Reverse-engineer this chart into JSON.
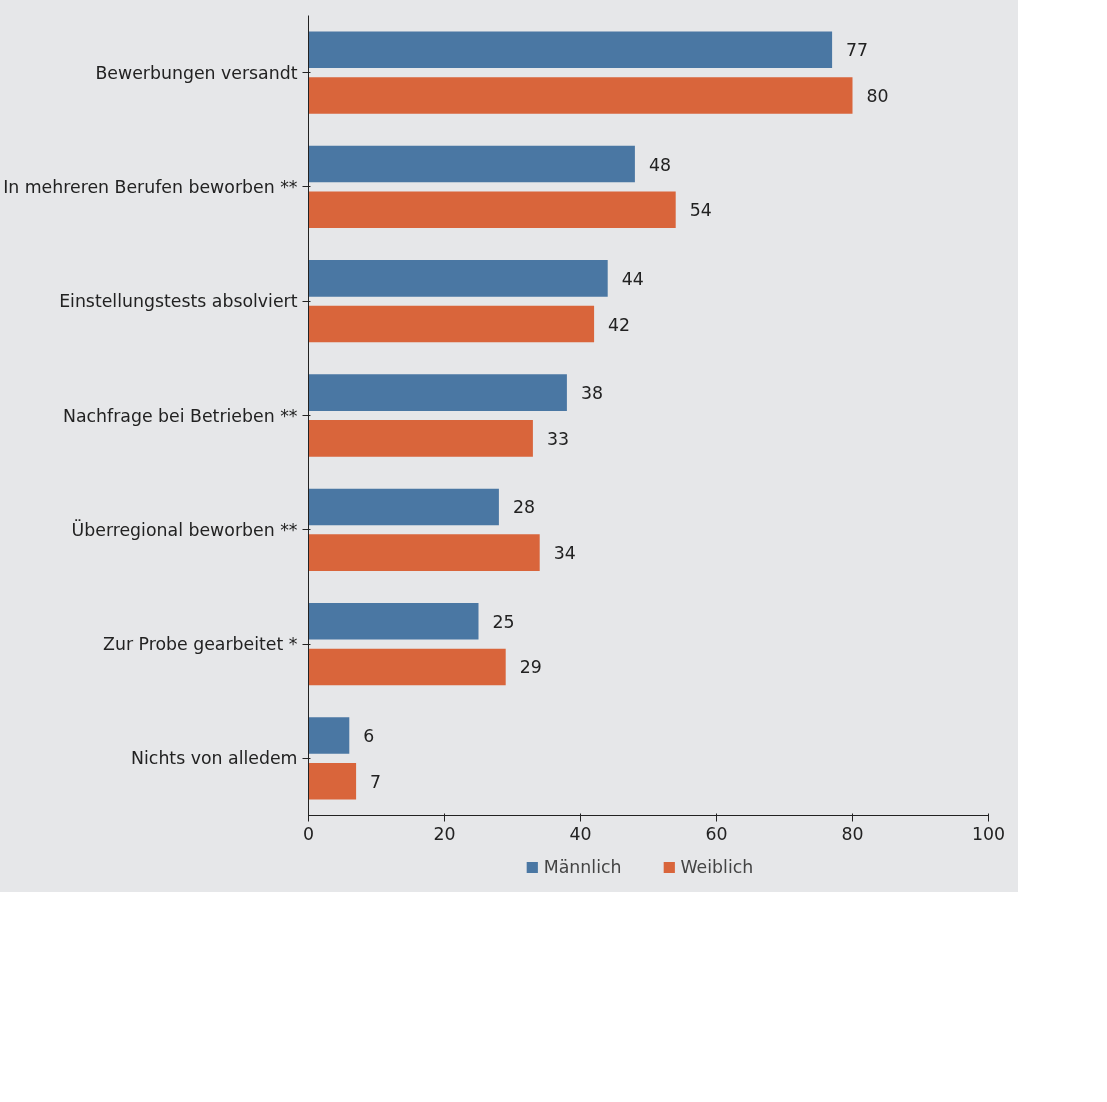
{
  "chart_data": {
    "type": "bar",
    "orientation": "horizontal",
    "categories": [
      "Bewerbungen versandt",
      "In mehreren Berufen beworben **",
      "Einstellungstests absolviert",
      "Nachfrage bei Betrieben **",
      "Überregional beworben **",
      "Zur Probe gearbeitet *",
      "Nichts von alledem"
    ],
    "series": [
      {
        "name": "Männlich",
        "color": "#4a77a3",
        "values": [
          77,
          48,
          44,
          38,
          28,
          25,
          6
        ]
      },
      {
        "name": "Weiblich",
        "color": "#d9653b",
        "values": [
          80,
          54,
          42,
          33,
          34,
          29,
          7
        ]
      }
    ],
    "xlim": [
      0,
      100
    ],
    "xticks": [
      0,
      20,
      40,
      60,
      80,
      100
    ],
    "data_labels": true,
    "legend": "bottom"
  }
}
